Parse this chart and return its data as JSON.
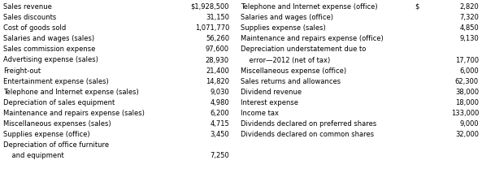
{
  "left_col": [
    [
      "Sales revenue",
      "$1,928,500"
    ],
    [
      "Sales discounts",
      "31,150"
    ],
    [
      "Cost of goods sold",
      "1,071,770"
    ],
    [
      "Salaries and wages (sales)",
      "56,260"
    ],
    [
      "Sales commission expense",
      "97,600"
    ],
    [
      "Advertising expense (sales)",
      "28,930"
    ],
    [
      "Freight-out",
      "21,400"
    ],
    [
      "Entertainment expense (sales)",
      "14,820"
    ],
    [
      "Telephone and Internet expense (sales)",
      "9,030"
    ],
    [
      "Depreciation of sales equipment",
      "4,980"
    ],
    [
      "Maintenance and repairs expense (sales)",
      "6,200"
    ],
    [
      "Miscellaneous expenses (sales)",
      "4,715"
    ],
    [
      "Supplies expense (office)",
      "3,450"
    ],
    [
      "Depreciation of office furniture",
      ""
    ],
    [
      "    and equipment",
      "7,250"
    ]
  ],
  "right_col": [
    [
      "Telephone and Internet expense (office)",
      "$",
      "2,820"
    ],
    [
      "Salaries and wages (office)",
      "",
      "7,320"
    ],
    [
      "Supplies expense (sales)",
      "",
      "4,850"
    ],
    [
      "Maintenance and repairs expense (office)",
      "",
      "9,130"
    ],
    [
      "Depreciation understatement due to",
      "",
      ""
    ],
    [
      "    error—2012 (net of tax)",
      "",
      "17,700"
    ],
    [
      "Miscellaneous expense (office)",
      "",
      "6,000"
    ],
    [
      "Sales returns and allowances",
      "",
      "62,300"
    ],
    [
      "Dividend revenue",
      "",
      "38,000"
    ],
    [
      "Interest expense",
      "",
      "18,000"
    ],
    [
      "Income tax",
      "",
      "133,000"
    ],
    [
      "Dividends declared on preferred shares",
      "",
      "9,000"
    ],
    [
      "Dividends declared on common shares",
      "",
      "32,000"
    ]
  ],
  "bg_color": "#ffffff",
  "text_color": "#000000",
  "font_size": 6.0,
  "font_family": "DejaVu Sans"
}
